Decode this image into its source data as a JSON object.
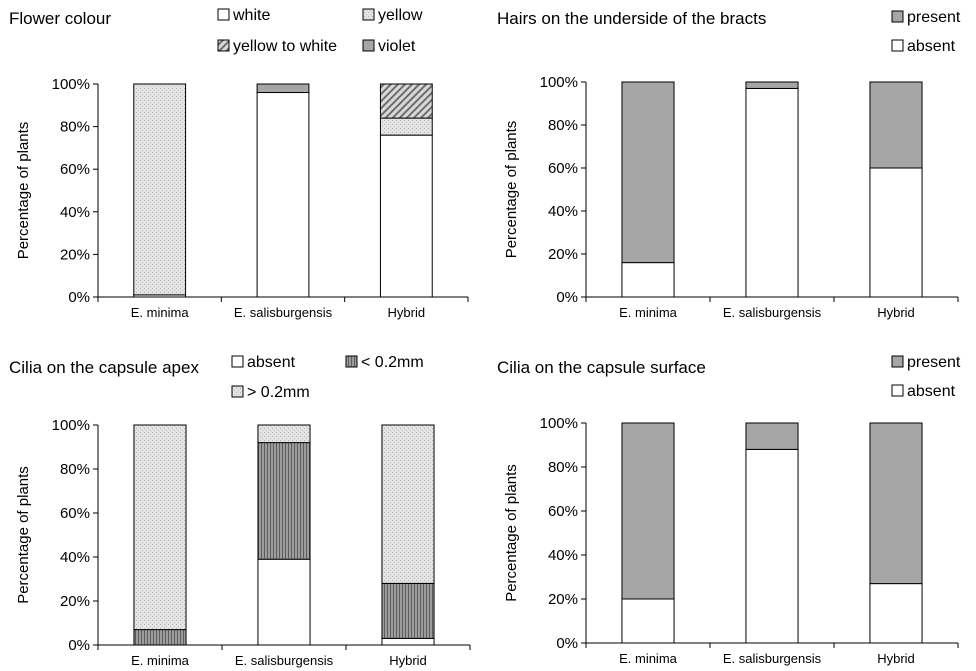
{
  "colors": {
    "white": "#ffffff",
    "dotted": "#e3e3e3",
    "grey": "#a6a6a6",
    "vstripe": "#7f7f7f",
    "hatch": "#9a9a9a"
  },
  "chart_data": [
    {
      "type": "bar",
      "stacked": true,
      "title": "Flower colour",
      "ylabel": "Percentage of plants",
      "ylim": [
        0,
        100
      ],
      "yticks": [
        "0%",
        "20%",
        "40%",
        "60%",
        "80%",
        "100%"
      ],
      "categories": [
        "E. minima",
        "E. salisburgensis",
        "Hybrid"
      ],
      "legend": [
        "white",
        "yellow",
        "yellow to white",
        "violet"
      ],
      "series": [
        {
          "name": "white",
          "pattern": "white",
          "values": [
            1,
            96,
            76
          ]
        },
        {
          "name": "yellow",
          "pattern": "dots",
          "values": [
            99,
            0,
            8
          ]
        },
        {
          "name": "yellow to white",
          "pattern": "hatch",
          "values": [
            0,
            0,
            16
          ]
        },
        {
          "name": "violet",
          "pattern": "grey",
          "values": [
            0,
            4,
            0
          ]
        }
      ]
    },
    {
      "type": "bar",
      "stacked": true,
      "title": "Hairs on the underside of the bracts",
      "ylabel": "Percentage of plants",
      "ylim": [
        0,
        100
      ],
      "yticks": [
        "0%",
        "20%",
        "40%",
        "60%",
        "80%",
        "100%"
      ],
      "categories": [
        "E. minima",
        "E. salisburgensis",
        "Hybrid"
      ],
      "legend": [
        "present",
        "absent"
      ],
      "series": [
        {
          "name": "absent",
          "pattern": "white",
          "values": [
            16,
            97,
            60
          ]
        },
        {
          "name": "present",
          "pattern": "grey",
          "values": [
            84,
            3,
            40
          ]
        }
      ]
    },
    {
      "type": "bar",
      "stacked": true,
      "title": "Cilia on the capsule apex",
      "ylabel": "Percentage of plants",
      "ylim": [
        0,
        100
      ],
      "yticks": [
        "0%",
        "20%",
        "40%",
        "60%",
        "80%",
        "100%"
      ],
      "categories": [
        "E. minima",
        "E. salisburgensis",
        "Hybrid"
      ],
      "legend": [
        "absent",
        "< 0.2mm",
        "> 0.2mm"
      ],
      "series": [
        {
          "name": "absent",
          "pattern": "white",
          "values": [
            0,
            39,
            3
          ]
        },
        {
          "name": "< 0.2mm",
          "pattern": "vstripe",
          "values": [
            7,
            53,
            25
          ]
        },
        {
          "name": "> 0.2mm",
          "pattern": "dots",
          "values": [
            93,
            8,
            72
          ]
        }
      ]
    },
    {
      "type": "bar",
      "stacked": true,
      "title": "Cilia on the capsule surface",
      "ylabel": "Percentage of plants",
      "ylim": [
        0,
        100
      ],
      "yticks": [
        "0%",
        "20%",
        "40%",
        "60%",
        "80%",
        "100%"
      ],
      "categories": [
        "E. minima",
        "E. salisburgensis",
        "Hybrid"
      ],
      "legend": [
        "present",
        "absent"
      ],
      "series": [
        {
          "name": "absent",
          "pattern": "white",
          "values": [
            20,
            88,
            27
          ]
        },
        {
          "name": "present",
          "pattern": "grey",
          "values": [
            80,
            12,
            73
          ]
        }
      ]
    }
  ]
}
